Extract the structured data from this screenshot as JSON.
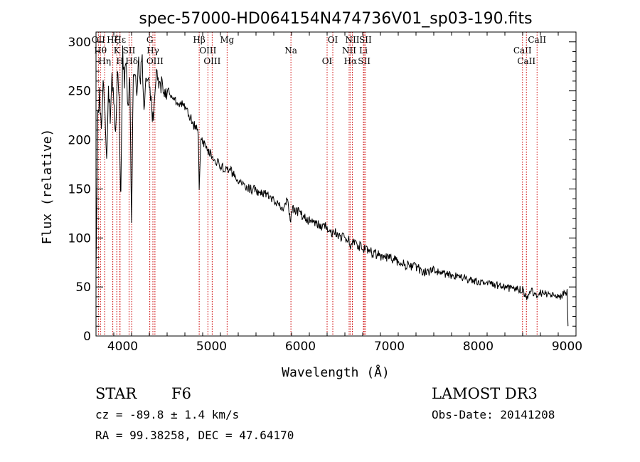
{
  "chart_data": {
    "type": "line",
    "title": "spec-57000-HD064154N474736V01_sp03-190.fits",
    "xlabel": "Wavelength (Å)",
    "ylabel": "Flux (relative)",
    "xlim": [
      3700,
      9100
    ],
    "ylim": [
      0,
      310
    ],
    "x_ticks": [
      4000,
      5000,
      6000,
      7000,
      8000,
      9000
    ],
    "y_ticks": [
      0,
      50,
      100,
      150,
      200,
      250,
      300
    ],
    "series": [
      {
        "x": [
          3700,
          3720,
          3740,
          3760,
          3780,
          3800,
          3820,
          3840,
          3860,
          3880,
          3900,
          3920,
          3940,
          3960,
          3970,
          3980,
          4000,
          4020,
          4040,
          4060,
          4080,
          4100,
          4120,
          4140,
          4160,
          4180,
          4200,
          4220,
          4240,
          4260,
          4280,
          4300,
          4320,
          4340,
          4360,
          4380,
          4400,
          4450,
          4500,
          4550,
          4600,
          4650,
          4700,
          4750,
          4800,
          4850,
          4861,
          4880,
          4900,
          4950,
          5000,
          5050,
          5100,
          5150,
          5200,
          5250,
          5300,
          5400,
          5500,
          5600,
          5700,
          5800,
          5850,
          5890,
          5900,
          5950,
          6000,
          6050,
          6100,
          6150,
          6200,
          6250,
          6300,
          6350,
          6400,
          6450,
          6500,
          6550,
          6563,
          6600,
          6650,
          6700,
          6750,
          6800,
          6900,
          7000,
          7100,
          7200,
          7300,
          7400,
          7500,
          7600,
          7700,
          7800,
          7900,
          8000,
          8100,
          8200,
          8300,
          8400,
          8500,
          8540,
          8600,
          8662,
          8700,
          8800,
          8900,
          8960,
          9000,
          9010
        ],
        "y": [
          60,
          230,
          245,
          210,
          255,
          240,
          180,
          250,
          225,
          262,
          245,
          200,
          270,
          235,
          165,
          150,
          290,
          260,
          285,
          230,
          270,
          110,
          275,
          262,
          250,
          275,
          265,
          280,
          240,
          255,
          260,
          255,
          235,
          220,
          235,
          268,
          258,
          255,
          250,
          245,
          240,
          238,
          232,
          225,
          215,
          208,
          145,
          200,
          198,
          190,
          185,
          178,
          175,
          168,
          170,
          165,
          160,
          152,
          148,
          145,
          140,
          130,
          138,
          120,
          130,
          128,
          125,
          120,
          118,
          115,
          115,
          110,
          112,
          105,
          105,
          102,
          100,
          98,
          88,
          98,
          92,
          90,
          88,
          85,
          82,
          80,
          76,
          72,
          70,
          65,
          67,
          64,
          62,
          60,
          57,
          55,
          53,
          52,
          50,
          48,
          47,
          40,
          46,
          42,
          44,
          42,
          40,
          42,
          44,
          10
        ]
      }
    ],
    "lines": [
      {
        "wavelength": 3727,
        "label": "OII"
      },
      {
        "wavelength": 3750,
        "label": "Hθ"
      },
      {
        "wavelength": 3798,
        "label": "Hη"
      },
      {
        "wavelength": 3889,
        "label": "Hζ"
      },
      {
        "wavelength": 3934,
        "label": "K"
      },
      {
        "wavelength": 3969,
        "label": "H"
      },
      {
        "wavelength": 3970,
        "label": "Hε"
      },
      {
        "wavelength": 4072,
        "label": "SII"
      },
      {
        "wavelength": 4102,
        "label": "Hδ"
      },
      {
        "wavelength": 4305,
        "label": "G"
      },
      {
        "wavelength": 4340,
        "label": "Hγ"
      },
      {
        "wavelength": 4363,
        "label": "OIII"
      },
      {
        "wavelength": 4861,
        "label": "Hβ"
      },
      {
        "wavelength": 4959,
        "label": "OIII"
      },
      {
        "wavelength": 5007,
        "label": "OIII"
      },
      {
        "wavelength": 5175,
        "label": "Mg"
      },
      {
        "wavelength": 5893,
        "label": "Na"
      },
      {
        "wavelength": 6300,
        "label": "OI"
      },
      {
        "wavelength": 6364,
        "label": "OI"
      },
      {
        "wavelength": 6548,
        "label": "NII"
      },
      {
        "wavelength": 6563,
        "label": "Hα"
      },
      {
        "wavelength": 6584,
        "label": "NII"
      },
      {
        "wavelength": 6708,
        "label": "Li"
      },
      {
        "wavelength": 6717,
        "label": "SII"
      },
      {
        "wavelength": 6731,
        "label": "SII"
      },
      {
        "wavelength": 8498,
        "label": "CaII"
      },
      {
        "wavelength": 8542,
        "label": "CaII"
      },
      {
        "wavelength": 8662,
        "label": "CaII"
      }
    ],
    "line_color": "#cc0000",
    "spectrum_color": "#000000",
    "grid": false
  },
  "info": {
    "class_label": "STAR",
    "subclass": "F6",
    "survey": "LAMOST DR3",
    "cz": "cz = -89.8 ± 1.4 km/s",
    "obs_date": "Obs-Date: 20141208",
    "coords": "RA =  99.38258, DEC =  47.64170"
  }
}
